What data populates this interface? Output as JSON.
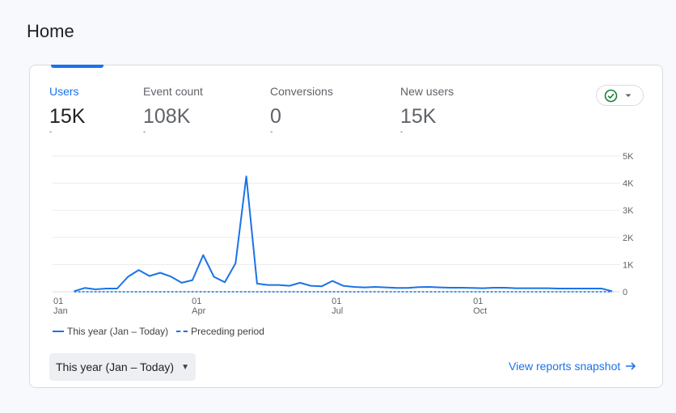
{
  "page": {
    "title": "Home"
  },
  "metrics": [
    {
      "label": "Users",
      "value": "15K",
      "active": true
    },
    {
      "label": "Event count",
      "value": "108K",
      "active": false
    },
    {
      "label": "Conversions",
      "value": "0",
      "active": false
    },
    {
      "label": "New users",
      "value": "15K",
      "active": false
    }
  ],
  "metric_dash": "-",
  "status_icon": "check-circle-icon",
  "chart_data": {
    "type": "line",
    "y_ticks": [
      "0",
      "1K",
      "2K",
      "3K",
      "4K",
      "5K"
    ],
    "ylim": [
      0,
      5000
    ],
    "y_axis_side": "right",
    "grid": true,
    "x_ticks": [
      {
        "day": "01",
        "month": "Jan"
      },
      {
        "day": "01",
        "month": "Apr"
      },
      {
        "day": "01",
        "month": "Jul"
      },
      {
        "day": "01",
        "month": "Oct"
      }
    ],
    "series": [
      {
        "name": "This year (Jan – Today)",
        "style": "solid",
        "color": "#1a73e8",
        "x": [
          "2023-01-15",
          "2023-01-22",
          "2023-01-29",
          "2023-02-05",
          "2023-02-12",
          "2023-02-19",
          "2023-02-26",
          "2023-03-05",
          "2023-03-12",
          "2023-03-19",
          "2023-03-26",
          "2023-04-02",
          "2023-04-09",
          "2023-04-16",
          "2023-04-23",
          "2023-04-30",
          "2023-05-07",
          "2023-05-14",
          "2023-05-21",
          "2023-05-28",
          "2023-06-04",
          "2023-06-11",
          "2023-06-18",
          "2023-06-25",
          "2023-07-02",
          "2023-07-09",
          "2023-07-16",
          "2023-07-23",
          "2023-07-30",
          "2023-08-06",
          "2023-08-13",
          "2023-08-20",
          "2023-08-27",
          "2023-09-03",
          "2023-09-10",
          "2023-09-17",
          "2023-09-24",
          "2023-10-01",
          "2023-10-08",
          "2023-10-15",
          "2023-10-22",
          "2023-10-29",
          "2023-11-05",
          "2023-11-12",
          "2023-11-19",
          "2023-11-26",
          "2023-12-03",
          "2023-12-10",
          "2023-12-17",
          "2023-12-24",
          "2023-12-31"
        ],
        "values": [
          20,
          140,
          90,
          120,
          120,
          550,
          800,
          580,
          700,
          560,
          330,
          430,
          1350,
          550,
          350,
          1050,
          4250,
          300,
          250,
          250,
          220,
          330,
          220,
          200,
          400,
          220,
          180,
          160,
          180,
          160,
          140,
          140,
          170,
          180,
          160,
          150,
          150,
          140,
          130,
          150,
          150,
          130,
          130,
          130,
          130,
          120,
          120,
          120,
          120,
          120,
          20
        ]
      },
      {
        "name": "Preceding period",
        "style": "dashed",
        "color": "#1a73e8",
        "x": [
          "2023-01-15",
          "2023-12-31"
        ],
        "values": [
          0,
          0
        ]
      }
    ]
  },
  "date_range": {
    "label": "This year (Jan – Today)"
  },
  "view_link": {
    "label": "View reports snapshot"
  }
}
